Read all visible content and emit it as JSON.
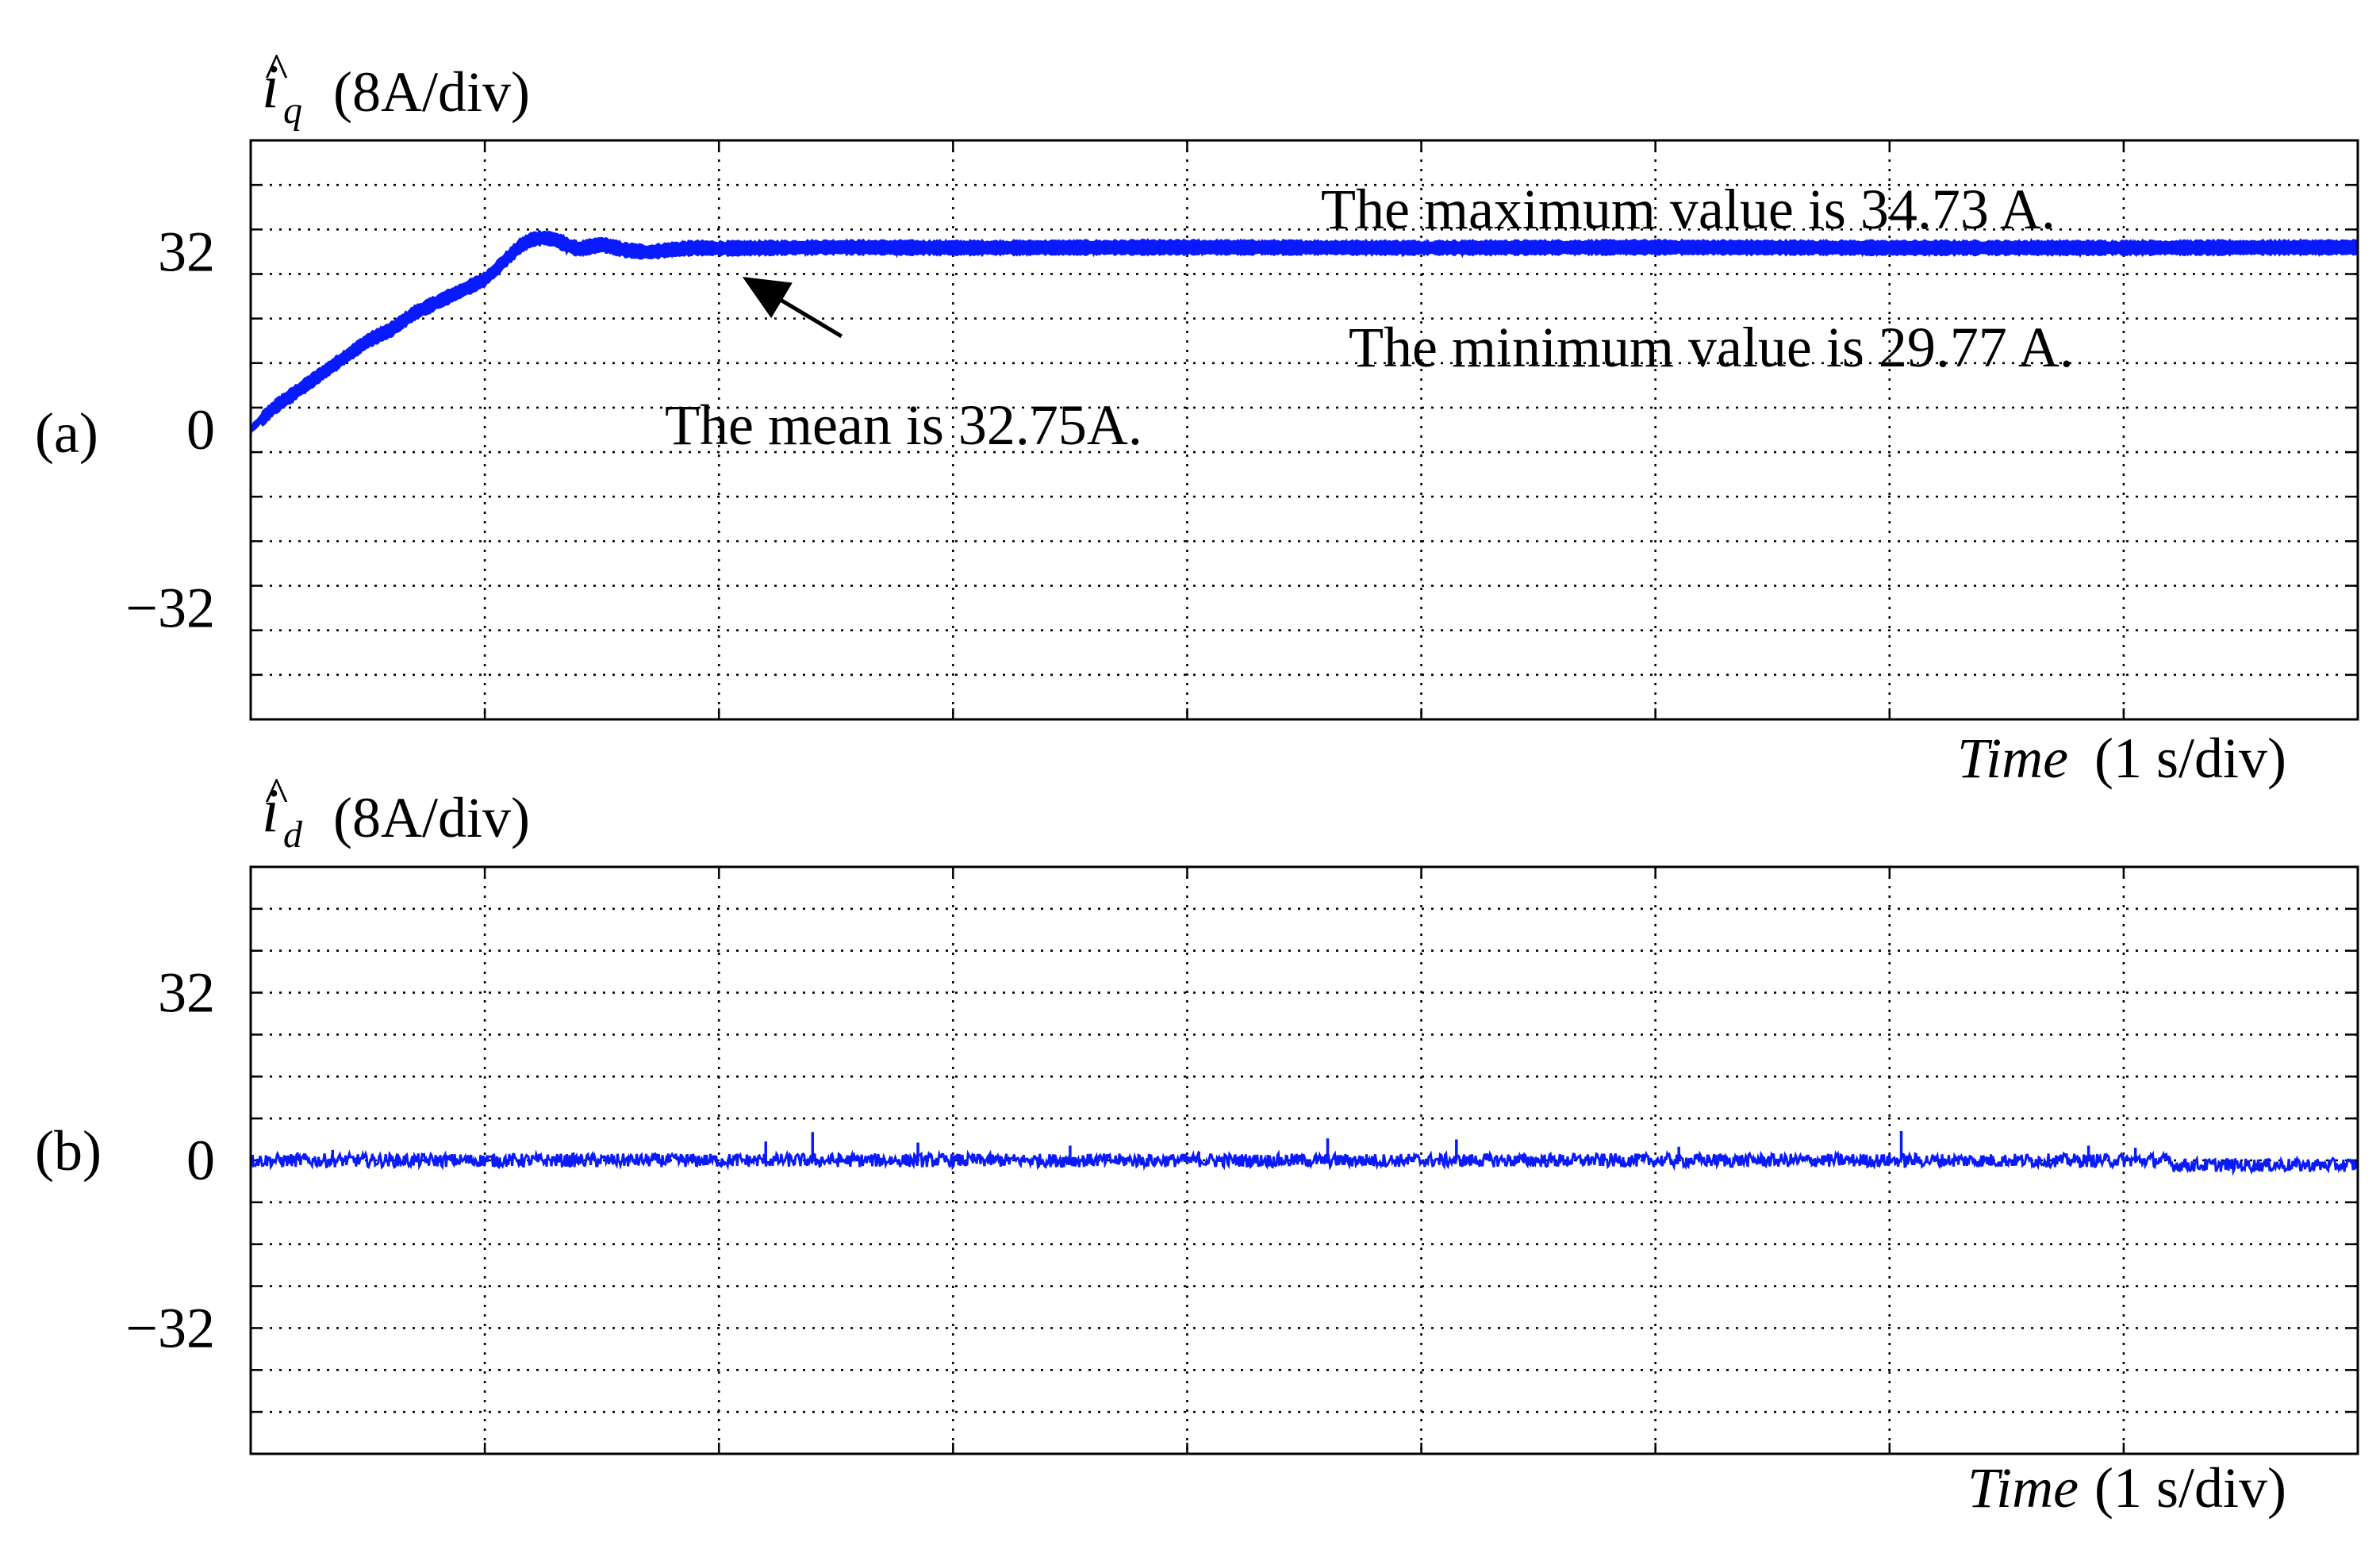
{
  "chart_data": [
    {
      "type": "line",
      "panel_label": "(a)",
      "ylabel": {
        "symbol": "i",
        "hat": "^",
        "subscript": "q",
        "units": "(8A/div)"
      },
      "xlabel": {
        "italic": "Time",
        "units": "(1 s/div)"
      },
      "x_divisions": 9,
      "y_divisions": 13,
      "y_per_div": 8,
      "xlim": [
        0,
        9
      ],
      "ylim": [
        -52,
        52
      ],
      "yticks": [
        {
          "value": 32,
          "label": "32"
        },
        {
          "value": 0,
          "label": "0"
        },
        {
          "value": -32,
          "label": "-32"
        }
      ],
      "grid": true,
      "series_color": "#0a1aff",
      "series": [
        {
          "x": [
            0,
            0.1,
            0.2,
            0.3,
            0.4,
            0.5,
            0.6,
            0.7,
            0.8,
            0.9,
            1.0,
            1.05,
            1.1,
            1.15,
            1.2,
            1.25,
            1.3,
            1.35,
            1.4,
            1.5,
            1.6,
            1.7,
            1.8,
            1.9,
            2.0,
            2.5,
            3.0,
            4.0,
            5.0,
            6.0,
            7.0,
            8.0,
            9.0
          ],
          "y": [
            0,
            4,
            7,
            10,
            13,
            16,
            18,
            21,
            23,
            25,
            27,
            29,
            31,
            33,
            34.2,
            34.5,
            34.2,
            33.2,
            32.5,
            33.3,
            32.3,
            31.9,
            32.4,
            32.7,
            32.6,
            32.8,
            32.7,
            32.8,
            32.7,
            32.8,
            32.7,
            32.7,
            32.8
          ],
          "band": 2.2
        }
      ],
      "annotations": [
        {
          "text": "The maximum value is 34.73 A."
        },
        {
          "text": "The minimum value is 29.77 A."
        },
        {
          "text": "The mean is 32.75A.",
          "arrow": true,
          "arrow_target": {
            "x": 2.1,
            "y": 27.5
          }
        }
      ]
    },
    {
      "type": "line",
      "panel_label": "(b)",
      "ylabel": {
        "symbol": "i",
        "hat": "^",
        "subscript": "d",
        "units": "(8A/div)"
      },
      "xlabel": {
        "italic": "Time",
        "units": "(1 s/div)"
      },
      "x_divisions": 9,
      "y_divisions": 14,
      "y_per_div": 8,
      "xlim": [
        0,
        9
      ],
      "ylim": [
        -56,
        56
      ],
      "yticks": [
        {
          "value": 32,
          "label": "32"
        },
        {
          "value": 0,
          "label": "0"
        },
        {
          "value": -32,
          "label": "-32"
        }
      ],
      "grid": true,
      "series_color": "#0a1aff",
      "series": [
        {
          "baseline": 0,
          "noise": 1.3,
          "spikes": [
            {
              "x": 0.2,
              "y": 1.5
            },
            {
              "x": 0.35,
              "y": 2.0
            },
            {
              "x": 2.2,
              "y": 3.6
            },
            {
              "x": 2.4,
              "y": 5.4
            },
            {
              "x": 2.85,
              "y": 3.4
            },
            {
              "x": 3.5,
              "y": 2.8
            },
            {
              "x": 4.05,
              "y": 1.7
            },
            {
              "x": 4.6,
              "y": 4.2
            },
            {
              "x": 5.15,
              "y": 4.0
            },
            {
              "x": 6.1,
              "y": 2.6
            },
            {
              "x": 7.05,
              "y": 5.6
            },
            {
              "x": 7.85,
              "y": 2.8
            },
            {
              "x": 8.05,
              "y": 2.4
            }
          ]
        }
      ]
    }
  ]
}
